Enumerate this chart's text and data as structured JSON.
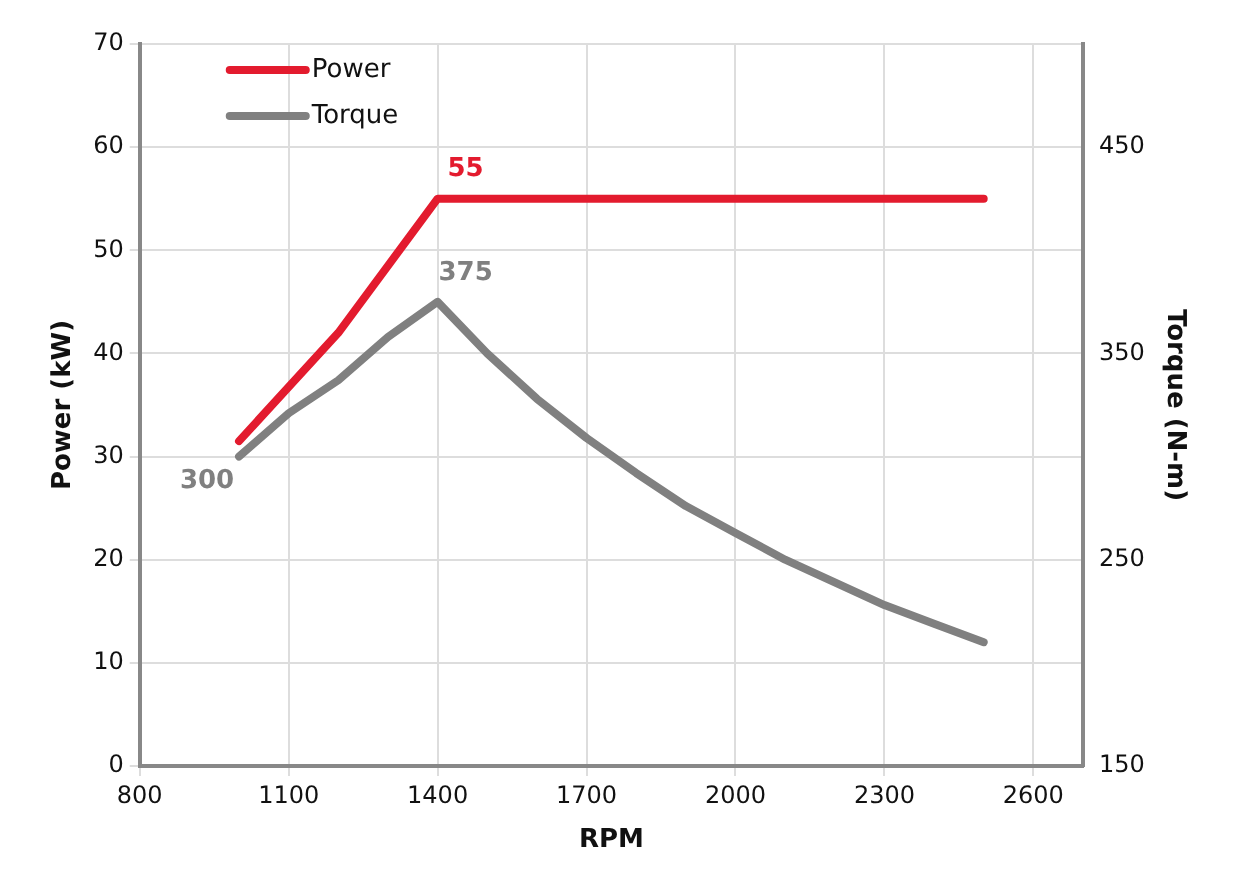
{
  "chart_data": {
    "type": "line",
    "xlabel": "RPM",
    "ylabel": "Power (kW)",
    "y2label": "Torque (N-m)",
    "xlim": [
      800,
      2700
    ],
    "xticks": [
      800,
      1100,
      1400,
      1700,
      2000,
      2300,
      2600
    ],
    "ylim": [
      0,
      70
    ],
    "yticks": [
      0,
      10,
      20,
      30,
      40,
      50,
      60,
      70
    ],
    "y2lim": [
      150,
      500
    ],
    "y2ticks": [
      150,
      250,
      350,
      450
    ],
    "grid": true,
    "legend": "top left",
    "marker": "none",
    "line_style": "solid",
    "series": [
      {
        "name": "Power",
        "color": "#e31b2e",
        "x": [
          1000,
          1200,
          1400,
          2500
        ],
        "values": [
          31.5,
          42,
          55,
          55
        ],
        "value_labels": [
          null,
          null,
          "55",
          null
        ]
      },
      {
        "name": "Torque",
        "color": "#808080",
        "axis": "y2",
        "x": [
          1000,
          1100,
          1200,
          1300,
          1400,
          1500,
          1600,
          1700,
          1800,
          1900,
          2000,
          2100,
          2200,
          2300,
          2400,
          2500
        ],
        "values": [
          300,
          321,
          337,
          358,
          375,
          350,
          328,
          309,
          292,
          276,
          263,
          250,
          239,
          228,
          219,
          210
        ],
        "value_labels": [
          "300",
          null,
          null,
          null,
          "375",
          null,
          null,
          null,
          null,
          null,
          null,
          null,
          null,
          null,
          null,
          null
        ]
      }
    ]
  }
}
